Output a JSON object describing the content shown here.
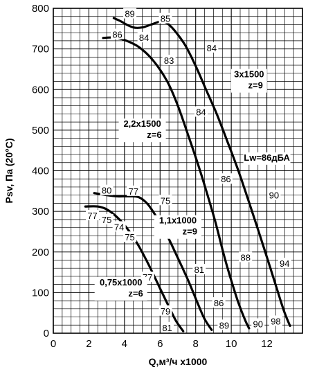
{
  "chart_data": {
    "type": "line",
    "xlabel": "Q,м³/ч x1000",
    "ylabel": "Psv, Па (20°C)",
    "xlim": [
      0,
      14
    ],
    "ylim": [
      0,
      800
    ],
    "xticks": [
      0,
      2,
      4,
      6,
      8,
      10,
      12
    ],
    "yticks": [
      0,
      100,
      200,
      300,
      400,
      500,
      600,
      700,
      800
    ],
    "grid": true,
    "series": [
      {
        "name": "3x1500 z=9",
        "x": [
          3.4,
          3.8,
          4.2,
          4.6,
          5.0,
          5.5,
          6.0,
          6.4,
          6.8,
          7.4,
          8.0,
          8.6,
          9.2,
          9.8,
          10.4,
          11.0,
          11.6,
          12.2,
          12.7,
          13.0,
          13.3
        ],
        "y": [
          776,
          768,
          758,
          752,
          753,
          760,
          767,
          763,
          746,
          710,
          658,
          598,
          538,
          470,
          400,
          322,
          242,
          160,
          90,
          50,
          18
        ]
      },
      {
        "name": "2,2x1500 z=6",
        "x": [
          2.8,
          3.4,
          4.0,
          4.8,
          5.6,
          6.4,
          7.0,
          7.6,
          8.1,
          8.6,
          9.1,
          9.6,
          10.0,
          10.4,
          10.8,
          11.0
        ],
        "y": [
          727,
          728,
          722,
          705,
          672,
          620,
          560,
          485,
          420,
          350,
          275,
          190,
          130,
          75,
          30,
          12
        ]
      },
      {
        "name": "1,1x1000 z=9",
        "x": [
          2.3,
          3.0,
          3.6,
          4.2,
          4.8,
          5.3,
          5.8,
          6.4,
          7.0,
          7.6,
          8.1,
          8.5,
          8.9
        ],
        "y": [
          345,
          340,
          337,
          337,
          335,
          318,
          286,
          240,
          185,
          128,
          75,
          35,
          8
        ]
      },
      {
        "name": "0,75x1000 z=6",
        "x": [
          1.8,
          2.5,
          3.0,
          3.6,
          4.2,
          4.8,
          5.4,
          6.0,
          6.5,
          6.9,
          7.3
        ],
        "y": [
          312,
          312,
          305,
          285,
          255,
          215,
          165,
          110,
          65,
          30,
          5
        ]
      }
    ],
    "point_labels": [
      {
        "text": "89",
        "x": 4.3,
        "y": 787
      },
      {
        "text": "85",
        "x": 6.3,
        "y": 775
      },
      {
        "text": "84",
        "x": 5.1,
        "y": 728
      },
      {
        "text": "84",
        "x": 8.9,
        "y": 703
      },
      {
        "text": "86",
        "x": 3.6,
        "y": 736
      },
      {
        "text": "83",
        "x": 6.5,
        "y": 672
      },
      {
        "text": "84",
        "x": 8.3,
        "y": 545
      },
      {
        "text": "86",
        "x": 9.7,
        "y": 380
      },
      {
        "text": "90",
        "x": 12.4,
        "y": 340
      },
      {
        "text": "88",
        "x": 10.8,
        "y": 187
      },
      {
        "text": "94",
        "x": 13.0,
        "y": 172
      },
      {
        "text": "90",
        "x": 11.5,
        "y": 23
      },
      {
        "text": "98",
        "x": 12.5,
        "y": 30
      },
      {
        "text": "80",
        "x": 3.0,
        "y": 352
      },
      {
        "text": "77",
        "x": 4.5,
        "y": 350
      },
      {
        "text": "75",
        "x": 6.3,
        "y": 327
      },
      {
        "text": "77",
        "x": 7.5,
        "y": 247
      },
      {
        "text": "81",
        "x": 8.2,
        "y": 157
      },
      {
        "text": "86",
        "x": 9.3,
        "y": 75
      },
      {
        "text": "89",
        "x": 9.6,
        "y": 20
      },
      {
        "text": "77",
        "x": 2.2,
        "y": 290
      },
      {
        "text": "75",
        "x": 3.0,
        "y": 280
      },
      {
        "text": "74",
        "x": 3.7,
        "y": 262
      },
      {
        "text": "75",
        "x": 4.3,
        "y": 237
      },
      {
        "text": "77",
        "x": 5.3,
        "y": 138
      },
      {
        "text": "79",
        "x": 6.3,
        "y": 55
      },
      {
        "text": "81",
        "x": 6.4,
        "y": 14
      }
    ],
    "annotations": [
      {
        "lines": [
          "3x1500",
          "z=9"
        ],
        "x": 11.0,
        "y": 630,
        "type": "motor"
      },
      {
        "lines": [
          "2,2x1500",
          "z=6"
        ],
        "x": 5.0,
        "y": 508,
        "type": "motor"
      },
      {
        "lines": [
          "Lw=86дБА"
        ],
        "x": 12.0,
        "y": 425,
        "type": "noise"
      },
      {
        "lines": [
          "1,1x1000",
          "z=9"
        ],
        "x": 7.0,
        "y": 270,
        "type": "motor"
      },
      {
        "lines": [
          "0,75x1000",
          "z=6"
        ],
        "x": 3.8,
        "y": 118,
        "type": "motor"
      }
    ]
  }
}
